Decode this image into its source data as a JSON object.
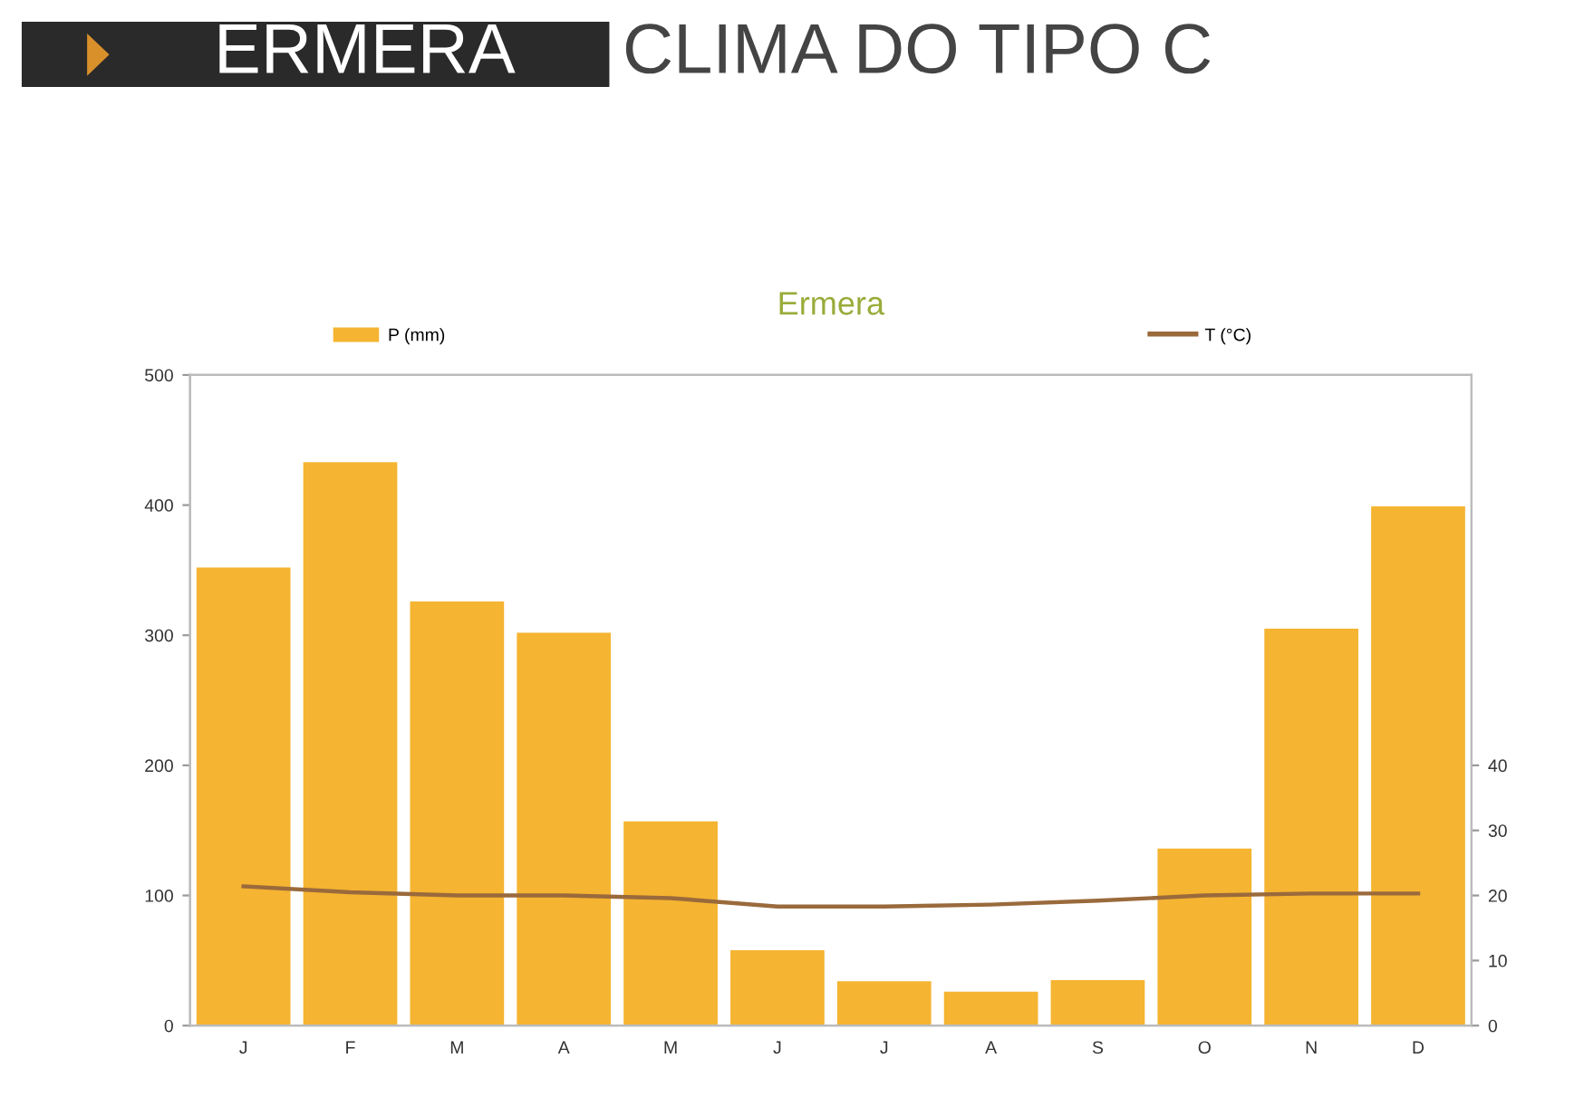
{
  "chart_data": {
    "type": "bar",
    "title": "Ermera",
    "annotations": [
      "ERMERA",
      "CLIMA DO TIPO C"
    ],
    "categories": [
      "J",
      "F",
      "M",
      "A",
      "M",
      "J",
      "J",
      "A",
      "S",
      "O",
      "N",
      "D"
    ],
    "series": [
      {
        "name": "P (mm)",
        "color": "#f5b431",
        "values": [
          352,
          433,
          326,
          302,
          157,
          58,
          34,
          26,
          35,
          136,
          305,
          399
        ]
      },
      {
        "name": "T (°C)",
        "type": "line",
        "axis": "y2",
        "color": "#9a6a3c",
        "values": [
          21.4,
          20.5,
          20.0,
          20.0,
          19.6,
          18.3,
          18.3,
          18.6,
          19.2,
          20.0,
          20.3,
          20.3
        ]
      }
    ],
    "ylim": [
      0,
      500
    ],
    "yticks": [
      0,
      100,
      200,
      300,
      400,
      500
    ],
    "y2lim": [
      0,
      100
    ],
    "y2ticks": [
      0,
      10,
      20,
      30,
      40
    ],
    "legend": "top"
  }
}
